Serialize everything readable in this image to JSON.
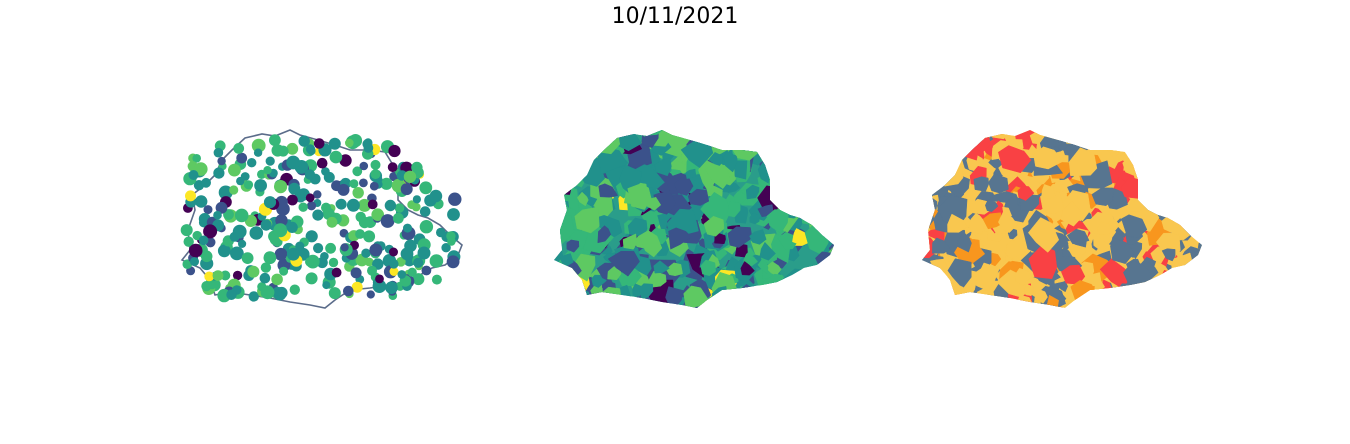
{
  "title": "10/11/2021",
  "colors": {
    "viridis": [
      "#440154",
      "#3b528b",
      "#21918c",
      "#2a9d8a",
      "#5ec962",
      "#35b779",
      "#fde725"
    ],
    "categorical": [
      "#577590",
      "#f9c74f",
      "#f8961e",
      "#f94144"
    ],
    "outline": "#5b6c8a"
  },
  "maps": [
    {
      "name": "points-map",
      "kind": "proportional-points"
    },
    {
      "name": "choropleth-continuous",
      "kind": "choropleth"
    },
    {
      "name": "choropleth-categorical",
      "kind": "choropleth"
    }
  ]
}
